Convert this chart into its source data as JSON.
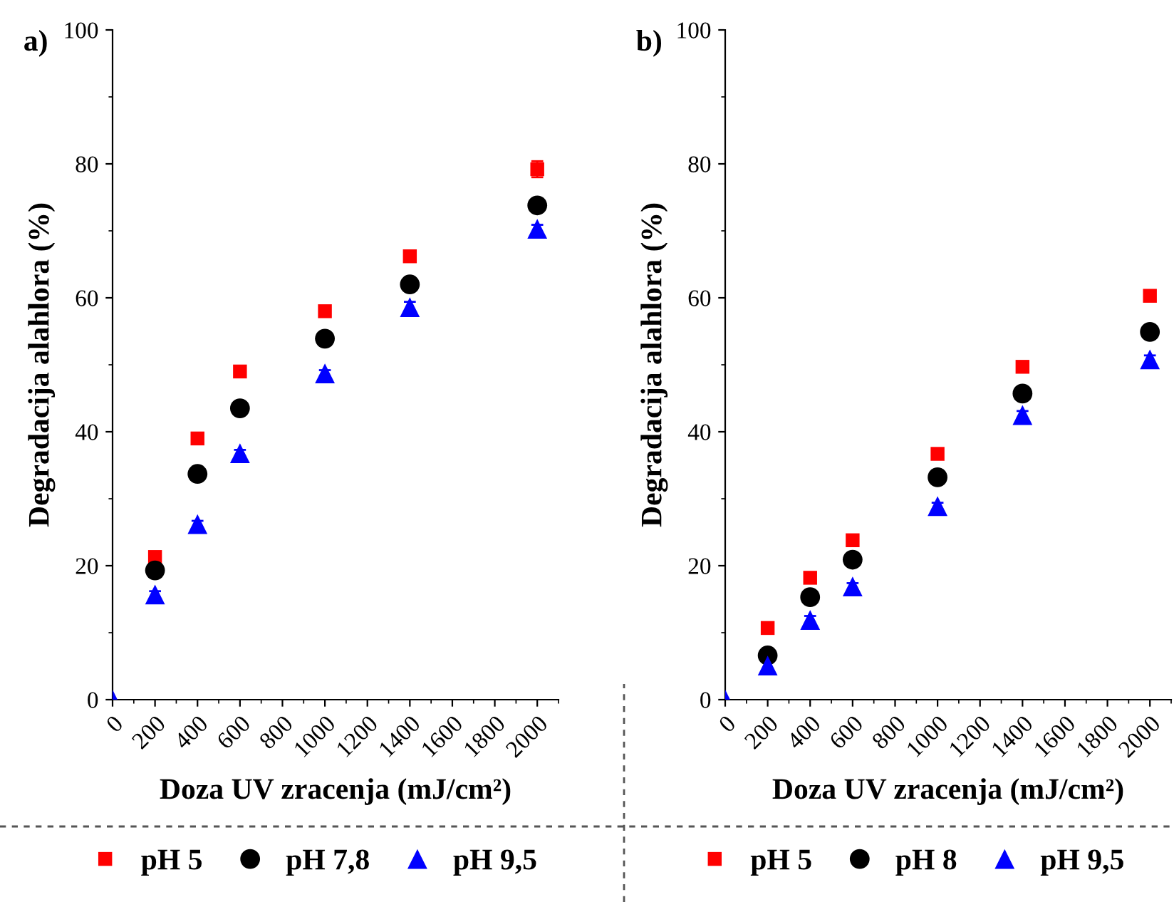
{
  "chart_data": [
    {
      "type": "scatter",
      "title": "a)",
      "xlabel": "Doza UV zracenja (mJ/cm²)",
      "ylabel": "Degradacija alahlora (%)",
      "x": [
        0,
        200,
        400,
        600,
        1000,
        1400,
        2000
      ],
      "xlim": [
        0,
        2100
      ],
      "xticks": [
        0,
        200,
        400,
        600,
        800,
        1000,
        1200,
        1400,
        1600,
        1800,
        2000
      ],
      "ylim": [
        0,
        100
      ],
      "yticks": [
        0,
        20,
        40,
        60,
        80,
        100
      ],
      "grid": false,
      "legend": "bottom",
      "series": [
        {
          "name": "pH 5",
          "color": "#ff0000",
          "marker": "square",
          "values": [
            null,
            21.3,
            39,
            49,
            58,
            66.2,
            79.2
          ],
          "errors": [
            null,
            null,
            null,
            0.6,
            null,
            0.8,
            1.2
          ]
        },
        {
          "name": "pH 7,8",
          "color": "#000000",
          "marker": "circle",
          "values": [
            null,
            19.3,
            33.7,
            43.5,
            53.9,
            62,
            73.8
          ],
          "errors": [
            null,
            null,
            null,
            null,
            null,
            null,
            1.0
          ]
        },
        {
          "name": "pH 9,5",
          "color": "#0000ff",
          "marker": "triangle",
          "values": [
            0,
            15.7,
            26.2,
            36.8,
            48.7,
            58.6,
            70.3
          ],
          "errors": [
            null,
            0.5,
            0.5,
            0.5,
            0.5,
            0.8,
            0.6
          ]
        }
      ]
    },
    {
      "type": "scatter",
      "title": "b)",
      "xlabel": "Doza UV zracenja (mJ/cm²)",
      "ylabel": "Degradacija alahlora (%)",
      "x": [
        0,
        200,
        400,
        600,
        1000,
        1400,
        2000
      ],
      "xlim": [
        0,
        2100
      ],
      "xticks": [
        0,
        200,
        400,
        600,
        800,
        1000,
        1200,
        1400,
        1600,
        1800,
        2000
      ],
      "ylim": [
        0,
        100
      ],
      "yticks": [
        0,
        20,
        40,
        60,
        80,
        100
      ],
      "grid": false,
      "legend": "bottom",
      "series": [
        {
          "name": "pH 5",
          "color": "#ff0000",
          "marker": "square",
          "values": [
            null,
            10.7,
            18.2,
            23.8,
            36.7,
            49.7,
            60.3
          ]
        },
        {
          "name": "pH 8",
          "color": "#000000",
          "marker": "circle",
          "values": [
            null,
            6.6,
            15.3,
            20.9,
            33.2,
            45.7,
            54.9
          ]
        },
        {
          "name": "pH 9,5",
          "color": "#0000ff",
          "marker": "triangle",
          "values": [
            0,
            5.1,
            11.9,
            16.9,
            28.9,
            42.5,
            50.8
          ],
          "errors": [
            null,
            0.8,
            0.6,
            0.5,
            0.5,
            0.6,
            0.6
          ]
        }
      ]
    }
  ]
}
